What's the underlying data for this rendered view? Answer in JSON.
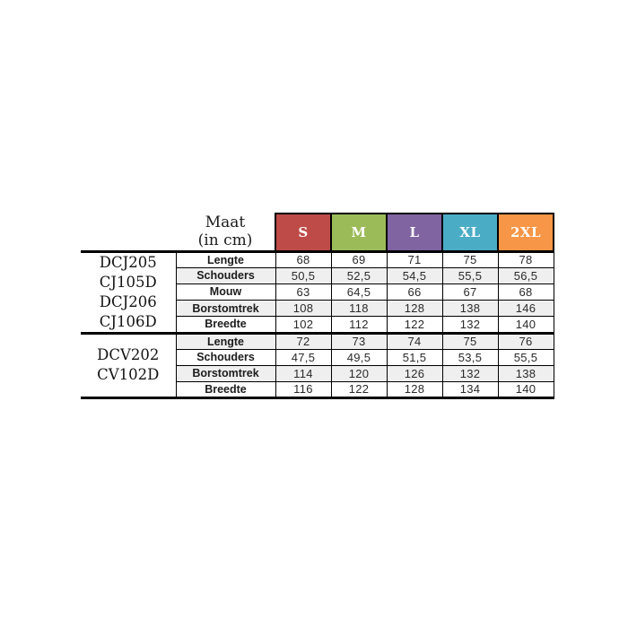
{
  "page": {
    "background_color": "#ffffff"
  },
  "table": {
    "header": {
      "title_line1": "Maat",
      "title_line2": "(in cm)",
      "sizes": [
        {
          "label": "S",
          "color": "#be4b48"
        },
        {
          "label": "M",
          "color": "#9bbb59"
        },
        {
          "label": "L",
          "color": "#8064a2"
        },
        {
          "label": "XL",
          "color": "#4bacc6"
        },
        {
          "label": "2XL",
          "color": "#f79646"
        }
      ]
    },
    "row_shade_color": "#efefef",
    "border_color": "#000000",
    "groups": [
      {
        "product_codes": [
          "DCJ205",
          "CJ105D",
          "DCJ206",
          "CJ106D"
        ],
        "rows": [
          {
            "label": "Lengte",
            "values": [
              "68",
              "69",
              "71",
              "75",
              "78"
            ]
          },
          {
            "label": "Schouders",
            "values": [
              "50,5",
              "52,5",
              "54,5",
              "55,5",
              "56,5"
            ]
          },
          {
            "label": "Mouw",
            "values": [
              "63",
              "64,5",
              "66",
              "67",
              "68"
            ]
          },
          {
            "label": "Borstomtrek",
            "values": [
              "108",
              "118",
              "128",
              "138",
              "146"
            ]
          },
          {
            "label": "Breedte",
            "values": [
              "102",
              "112",
              "122",
              "132",
              "140"
            ]
          }
        ]
      },
      {
        "product_codes": [
          "DCV202",
          "CV102D"
        ],
        "rows": [
          {
            "label": "Lengte",
            "values": [
              "72",
              "73",
              "74",
              "75",
              "76"
            ]
          },
          {
            "label": "Schouders",
            "values": [
              "47,5",
              "49,5",
              "51,5",
              "53,5",
              "55,5"
            ]
          },
          {
            "label": "Borstomtrek",
            "values": [
              "114",
              "120",
              "126",
              "132",
              "138"
            ]
          },
          {
            "label": "Breedte",
            "values": [
              "116",
              "122",
              "128",
              "134",
              "140"
            ]
          }
        ]
      }
    ]
  },
  "chart_data": {
    "type": "table",
    "title": "Maat (in cm)",
    "columns": [
      "S",
      "M",
      "L",
      "XL",
      "2XL"
    ],
    "groups": [
      {
        "products": [
          "DCJ205",
          "CJ105D",
          "DCJ206",
          "CJ106D"
        ],
        "measurements": [
          {
            "name": "Lengte",
            "values": [
              68,
              69,
              71,
              75,
              78
            ]
          },
          {
            "name": "Schouders",
            "values": [
              50.5,
              52.5,
              54.5,
              55.5,
              56.5
            ]
          },
          {
            "name": "Mouw",
            "values": [
              63,
              64.5,
              66,
              67,
              68
            ]
          },
          {
            "name": "Borstomtrek",
            "values": [
              108,
              118,
              128,
              138,
              146
            ]
          },
          {
            "name": "Breedte",
            "values": [
              102,
              112,
              122,
              132,
              140
            ]
          }
        ]
      },
      {
        "products": [
          "DCV202",
          "CV102D"
        ],
        "measurements": [
          {
            "name": "Lengte",
            "values": [
              72,
              73,
              74,
              75,
              76
            ]
          },
          {
            "name": "Schouders",
            "values": [
              47.5,
              49.5,
              51.5,
              53.5,
              55.5
            ]
          },
          {
            "name": "Borstomtrek",
            "values": [
              114,
              120,
              126,
              132,
              138
            ]
          },
          {
            "name": "Breedte",
            "values": [
              116,
              122,
              128,
              134,
              140
            ]
          }
        ]
      }
    ]
  }
}
